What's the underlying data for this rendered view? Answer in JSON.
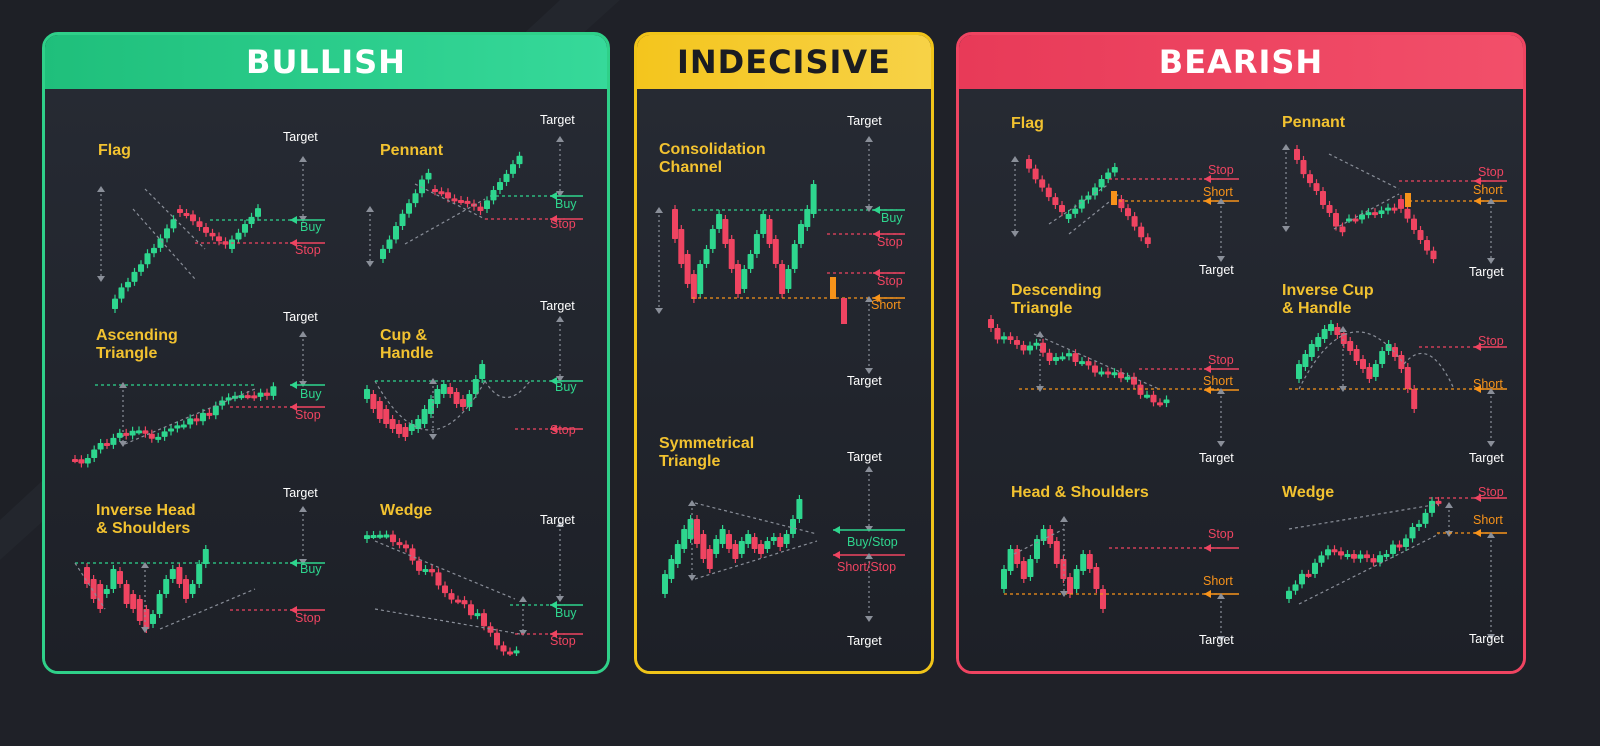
{
  "sections": {
    "bullish": "BULLISH",
    "indecisive": "INDECISIVE",
    "bearish": "BEARISH"
  },
  "patterns": {
    "bull_flag": "Flag",
    "bull_pennant": "Pennant",
    "bull_asc_triangle": "Ascending\nTriangle",
    "bull_cup_handle": "Cup &\nHandle",
    "bull_inv_hs": "Inverse Head\n& Shoulders",
    "bull_wedge": "Wedge",
    "ind_channel": "Consolidation\nChannel",
    "ind_sym_triangle": "Symmetrical\nTriangle",
    "bear_flag": "Flag",
    "bear_pennant": "Pennant",
    "bear_desc_triangle": "Descending\nTriangle",
    "bear_inv_cup": "Inverse Cup\n& Handle",
    "bear_hs": "Head & Shoulders",
    "bear_wedge": "Wedge"
  },
  "labels": {
    "target": "Target",
    "buy": "Buy",
    "stop": "Stop",
    "short": "Short",
    "buy_stop": "Buy/Stop",
    "short_stop": "Short/Stop"
  },
  "colors": {
    "bullish": "#2ed68e",
    "bearish": "#ef4461",
    "short": "#f7931a",
    "indecisive": "#f0c419",
    "title": "#f2c230"
  }
}
